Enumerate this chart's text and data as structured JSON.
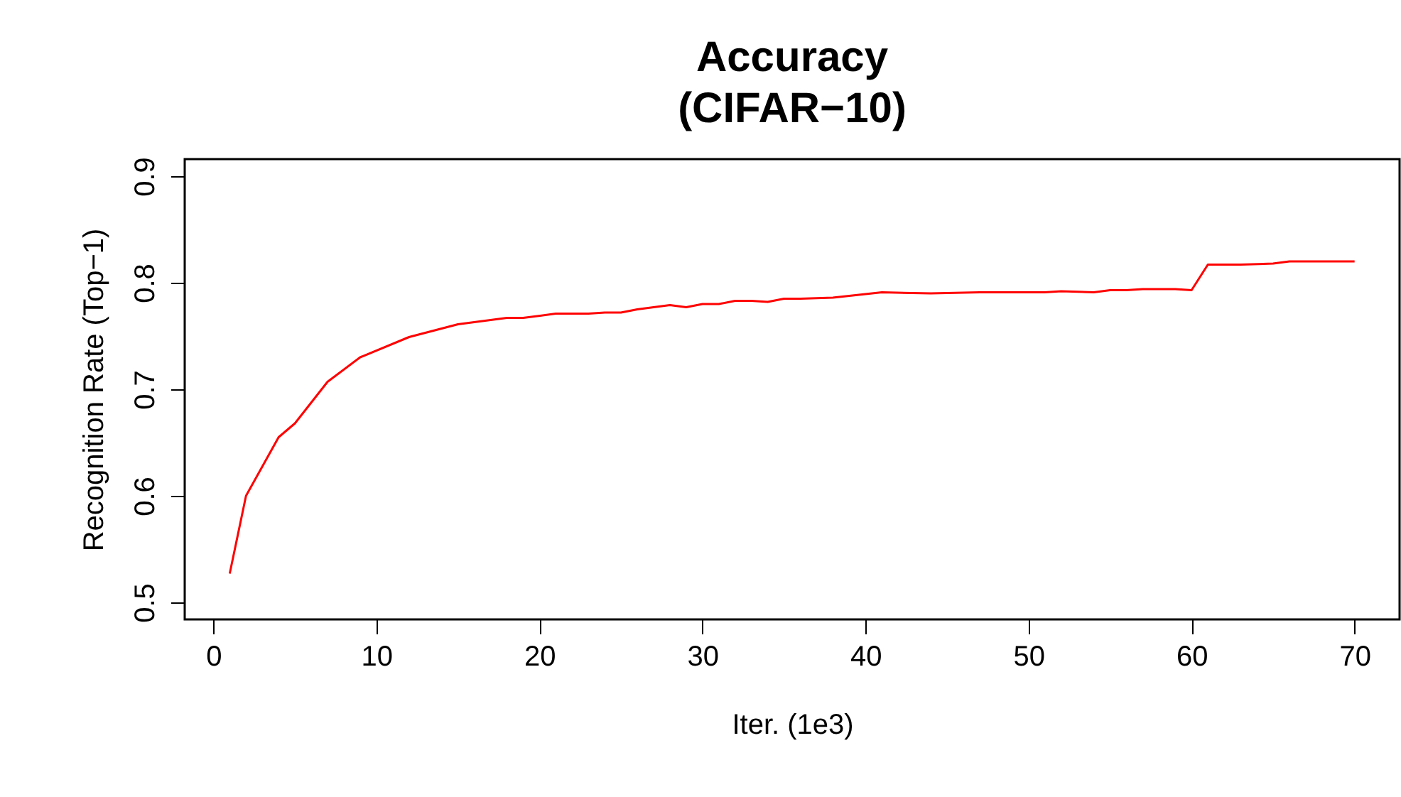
{
  "chart_data": {
    "type": "line",
    "title": "Accuracy\n(CIFAR−10)",
    "xlabel": "Iter. (1e3)",
    "ylabel": "Recognition Rate (Top−1)",
    "x": [
      1,
      2,
      4,
      5,
      7,
      9,
      12,
      15,
      16,
      18,
      19,
      21,
      23,
      24,
      25,
      26,
      28,
      29,
      30,
      31,
      32,
      33,
      34,
      35,
      36,
      38,
      41,
      44,
      47,
      49,
      51,
      52,
      54,
      55,
      56,
      57,
      59,
      60,
      61,
      63,
      65,
      66,
      70
    ],
    "series": [
      {
        "color": "#ff0000",
        "values": [
          0.527,
          0.6,
          0.655,
          0.668,
          0.707,
          0.73,
          0.749,
          0.761,
          0.763,
          0.767,
          0.767,
          0.771,
          0.771,
          0.772,
          0.772,
          0.775,
          0.779,
          0.777,
          0.78,
          0.78,
          0.783,
          0.783,
          0.782,
          0.785,
          0.785,
          0.786,
          0.791,
          0.79,
          0.791,
          0.791,
          0.791,
          0.792,
          0.791,
          0.793,
          0.793,
          0.794,
          0.794,
          0.793,
          0.817,
          0.817,
          0.818,
          0.82,
          0.82
        ]
      }
    ],
    "xlim": [
      -1.76,
      72.76
    ],
    "xticks": [
      0,
      10,
      20,
      30,
      40,
      50,
      60,
      70
    ],
    "ylim": [
      0.484,
      0.916
    ],
    "yticks": [
      0.5,
      0.6,
      0.7,
      0.8,
      0.9
    ],
    "grid": false,
    "marker": "none",
    "line_style": "solid"
  }
}
